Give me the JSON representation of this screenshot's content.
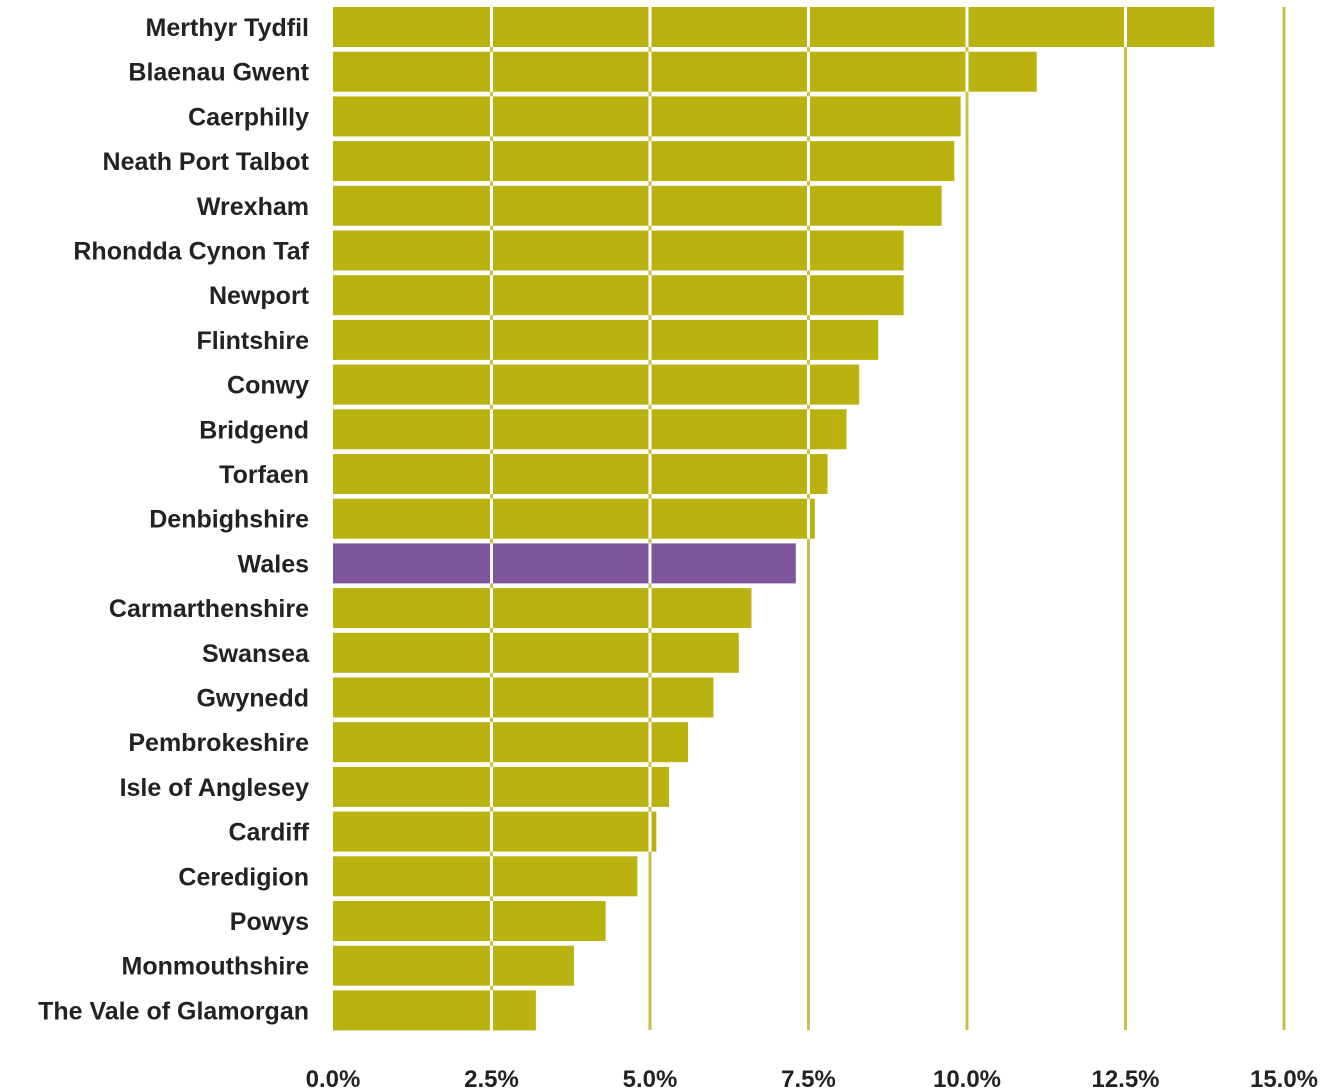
{
  "chart_data": {
    "type": "bar",
    "orientation": "horizontal",
    "categories": [
      "Merthyr Tydfil",
      "Blaenau Gwent",
      "Caerphilly",
      "Neath Port Talbot",
      "Wrexham",
      "Rhondda Cynon Taf",
      "Newport",
      "Flintshire",
      "Conwy",
      "Bridgend",
      "Torfaen",
      "Denbighshire",
      "Wales",
      "Carmarthenshire",
      "Swansea",
      "Gwynedd",
      "Pembrokeshire",
      "Isle of Anglesey",
      "Cardiff",
      "Ceredigion",
      "Powys",
      "Monmouthshire",
      "The Vale of Glamorgan"
    ],
    "values": [
      13.9,
      11.1,
      9.9,
      9.8,
      9.6,
      9.0,
      9.0,
      8.6,
      8.3,
      8.1,
      7.8,
      7.6,
      7.3,
      6.6,
      6.4,
      6.0,
      5.6,
      5.3,
      5.1,
      4.8,
      4.3,
      3.8,
      3.2
    ],
    "highlight_category": "Wales",
    "xlim": [
      0,
      15
    ],
    "x_ticks": [
      "0.0%",
      "2.5%",
      "5.0%",
      "7.5%",
      "10.0%",
      "12.5%",
      "15.0%"
    ],
    "grid": true,
    "title": "",
    "xlabel": "",
    "ylabel": "",
    "colors": {
      "bar": "#bab20f",
      "highlight": "#7e559d",
      "grid_on_bar": "#ffffff",
      "grid": "#c8c14a"
    }
  }
}
